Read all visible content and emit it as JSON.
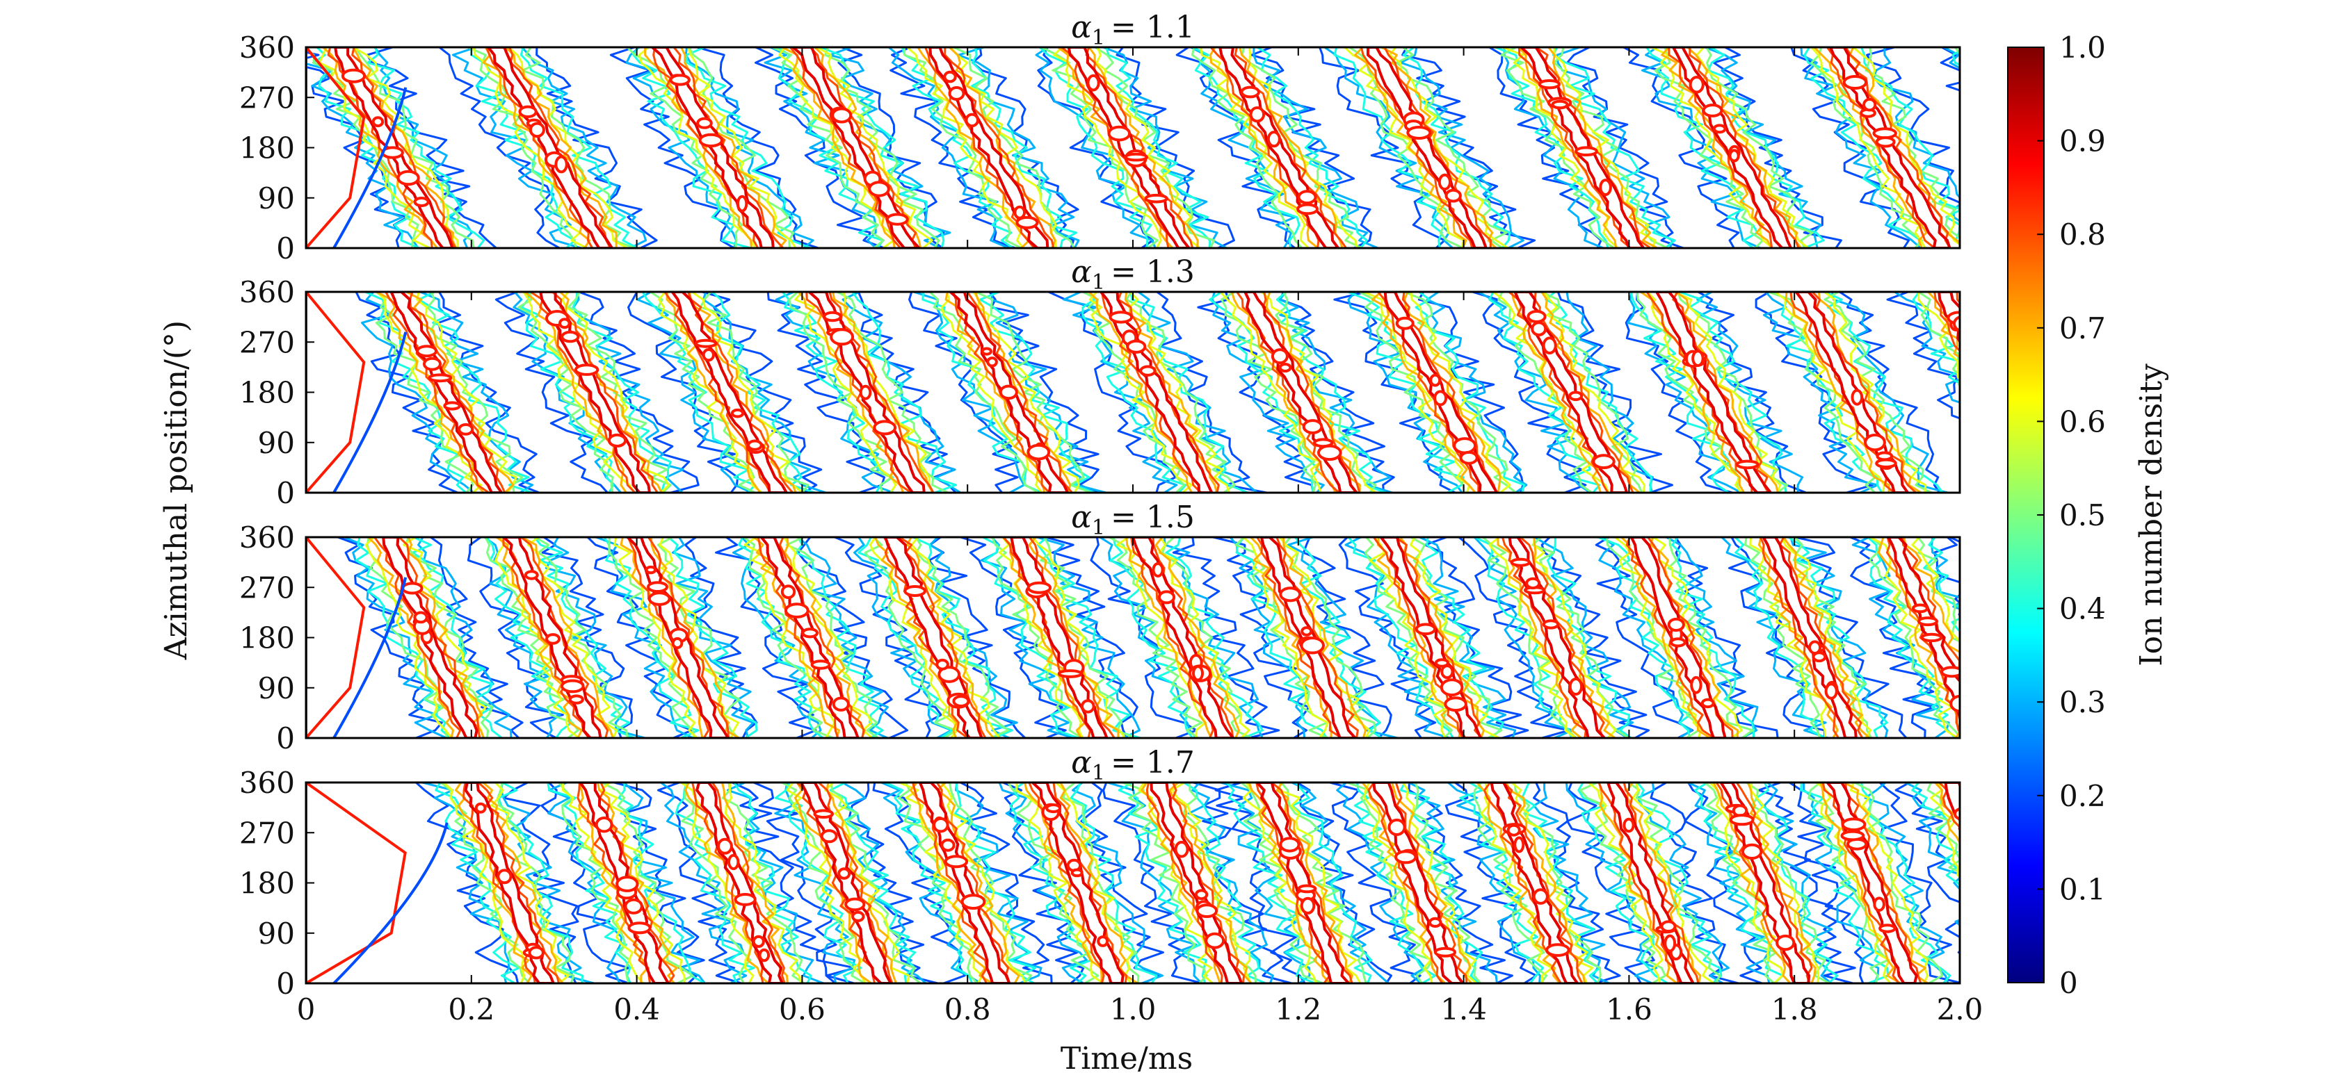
{
  "chart_data": {
    "type": "heatmap",
    "subtype": "contour",
    "x": {
      "label": "Time/ms",
      "range": [
        0,
        2.0
      ],
      "ticks": [
        0,
        0.2,
        0.4,
        0.6,
        0.8,
        1.0,
        1.2,
        1.4,
        1.6,
        1.8,
        2.0
      ],
      "tick_labels": [
        "0",
        "0.2",
        "0.4",
        "0.6",
        "0.8",
        "1.0",
        "1.2",
        "1.4",
        "1.6",
        "1.8",
        "2.0"
      ]
    },
    "y": {
      "label": "Azimuthal position/(°)",
      "range": [
        0,
        360
      ],
      "ticks": [
        0,
        90,
        180,
        270,
        360
      ],
      "tick_labels": [
        "0",
        "90",
        "180",
        "270",
        "360"
      ]
    },
    "colorbar": {
      "label": "Ion number density",
      "range": [
        0,
        1.0
      ],
      "ticks": [
        0,
        0.1,
        0.2,
        0.3,
        0.4,
        0.5,
        0.6,
        0.7,
        0.8,
        0.9,
        1.0
      ],
      "tick_labels": [
        "0",
        "0.1",
        "0.2",
        "0.3",
        "0.4",
        "0.5",
        "0.6",
        "0.7",
        "0.8",
        "0.9",
        "1.0"
      ],
      "colormap": "jet",
      "colors": [
        "#00007f",
        "#0000ff",
        "#007fff",
        "#00ffff",
        "#7fff7f",
        "#ffff00",
        "#ff7f00",
        "#ff0000",
        "#7f0000"
      ]
    },
    "contour_levels": [
      0.2,
      0.3,
      0.4,
      0.5,
      0.6,
      0.7,
      0.8,
      0.9
    ],
    "panels": [
      {
        "title_symbol": "α",
        "title_sub": "1",
        "title_value": "= 1.1",
        "band_start_times_ms": [
          0.04,
          0.23,
          0.43,
          0.6,
          0.76,
          0.93,
          1.11,
          1.29,
          1.48,
          1.66,
          1.85,
          2.03
        ],
        "band_transit_ms": 0.13,
        "transient": "dense initial band near t = 0"
      },
      {
        "title_symbol": "α",
        "title_sub": "1",
        "title_value": "= 1.3",
        "band_start_times_ms": [
          0.11,
          0.29,
          0.45,
          0.62,
          0.79,
          0.97,
          1.14,
          1.31,
          1.47,
          1.64,
          1.81,
          1.98
        ],
        "band_transit_ms": 0.12,
        "transient": "closed loop region near t = 0.05 ms"
      },
      {
        "title_symbol": "α",
        "title_sub": "1",
        "title_value": "= 1.5",
        "band_start_times_ms": [
          0.1,
          0.25,
          0.4,
          0.56,
          0.71,
          0.86,
          1.01,
          1.16,
          1.31,
          1.46,
          1.61,
          1.77,
          1.92,
          2.06
        ],
        "band_transit_ms": 0.1,
        "transient": "closed loop region near t = 0.05 ms"
      },
      {
        "title_symbol": "α",
        "title_sub": "1",
        "title_value": "= 1.7",
        "band_start_times_ms": [
          0.2,
          0.34,
          0.48,
          0.61,
          0.75,
          0.89,
          1.03,
          1.16,
          1.3,
          1.44,
          1.58,
          1.72,
          1.85,
          1.99
        ],
        "band_transit_ms": 0.09,
        "transient": "strong initial structure near t = 0–0.12 ms"
      }
    ]
  }
}
